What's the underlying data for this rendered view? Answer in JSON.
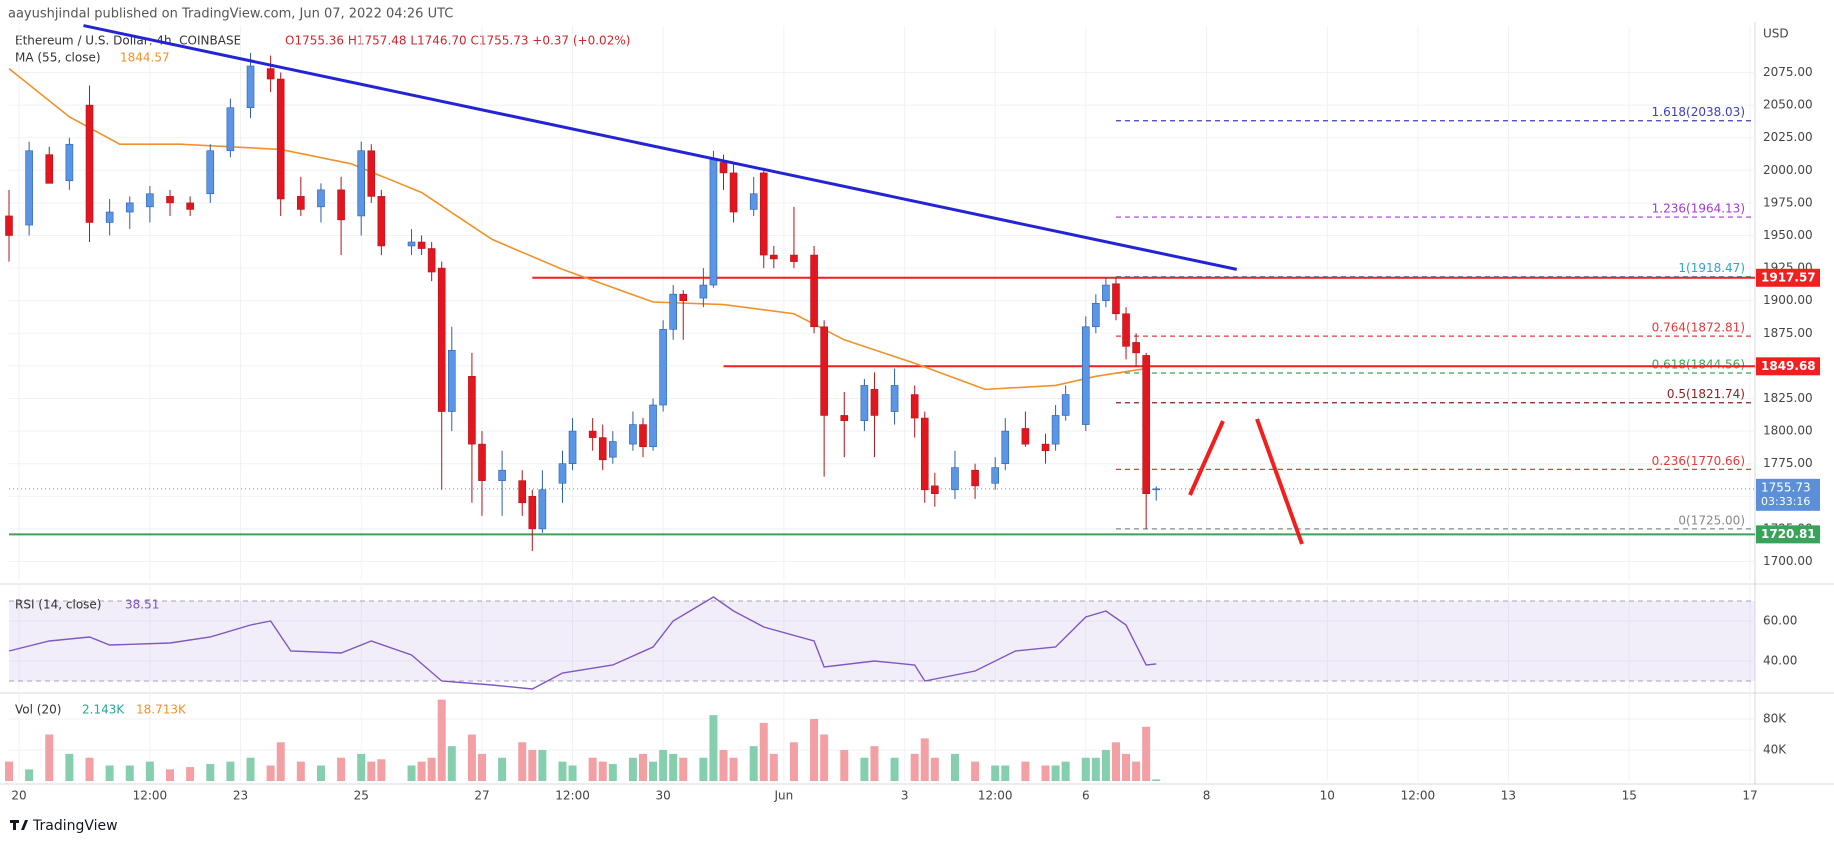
{
  "header": {
    "publisher": "aayushjindal published on TradingView.com, Jun 07, 2022 04:26 UTC",
    "symbol": "Ethereum / U.S. Dollar, 4h, COINBASE",
    "ohlc": "O1755.36  H1757.48  L1746.70  C1755.73  +0.37 (+0.02%)",
    "ma_label": "MA (55, close)",
    "ma_value": 1844.57
  },
  "footer": "TradingView",
  "chart_data": [
    {
      "type": "candlestick",
      "axis_title": "USD",
      "up_color": "#5b95e6",
      "down_color": "#e3161f",
      "grid": true,
      "xlim": [
        0,
        173.5
      ],
      "ylim": [
        1685.8,
        2107.6
      ],
      "xticks": [
        {
          "value": 1,
          "label": "20"
        },
        {
          "value": 14,
          "label": "12:00"
        },
        {
          "value": 23,
          "label": "23"
        },
        {
          "value": 35,
          "label": "25"
        },
        {
          "value": 47,
          "label": "27"
        },
        {
          "value": 56,
          "label": "12:00"
        },
        {
          "value": 65,
          "label": "30"
        },
        {
          "value": 77,
          "label": "Jun"
        },
        {
          "value": 89,
          "label": "3"
        },
        {
          "value": 98,
          "label": "12:00"
        },
        {
          "value": 107,
          "label": "6"
        },
        {
          "value": 119,
          "label": "8"
        },
        {
          "value": 131,
          "label": "10"
        },
        {
          "value": 140,
          "label": "12:00"
        },
        {
          "value": 149,
          "label": "13"
        },
        {
          "value": 161,
          "label": "15"
        },
        {
          "value": 173,
          "label": "17"
        }
      ],
      "yticks": [
        {
          "value": 1700,
          "label": "1700.00"
        },
        {
          "value": 1725,
          "label": "1725.00"
        },
        {
          "value": 1750,
          "label": "1750.00"
        },
        {
          "value": 1775,
          "label": "1775.00"
        },
        {
          "value": 1800,
          "label": "1800.00"
        },
        {
          "value": 1825,
          "label": "1825.00"
        },
        {
          "value": 1850,
          "label": "1850.00"
        },
        {
          "value": 1875,
          "label": "1875.00"
        },
        {
          "value": 1900,
          "label": "1900.00"
        },
        {
          "value": 1925,
          "label": "1925.00"
        },
        {
          "value": 1950,
          "label": "1950.00"
        },
        {
          "value": 1975,
          "label": "1975.00"
        },
        {
          "value": 2000,
          "label": "2000.00"
        },
        {
          "value": 2025,
          "label": "2025.00"
        },
        {
          "value": 2050,
          "label": "2050.00"
        },
        {
          "value": 2075,
          "label": "2075.00"
        }
      ],
      "x": [
        0,
        2,
        4,
        6,
        8,
        10,
        12,
        14,
        16,
        18,
        20,
        22,
        24,
        26,
        27,
        29,
        31,
        33,
        35,
        36,
        37,
        40,
        41,
        42,
        43,
        44,
        46,
        47,
        49,
        51,
        52,
        53,
        55,
        56,
        58,
        59,
        60,
        62,
        63,
        64,
        65,
        66,
        67,
        69,
        70,
        71,
        72,
        74,
        75,
        76,
        78,
        80,
        81,
        83,
        85,
        86,
        88,
        90,
        91,
        92,
        94,
        96,
        98,
        99,
        101,
        103,
        104,
        105,
        107,
        108,
        109,
        110,
        111,
        112,
        113,
        114
      ],
      "open": [
        1965,
        1958,
        2012,
        1992,
        2050,
        1960,
        1968,
        1972,
        1980,
        1975,
        1982,
        2015,
        2048,
        2078,
        2070,
        1980,
        1972,
        1985,
        1965,
        2015,
        1980,
        1942,
        1945,
        1940,
        1925,
        1815,
        1842,
        1790,
        1762,
        1762,
        1750,
        1725,
        1760,
        1775,
        1800,
        1795,
        1780,
        1790,
        1805,
        1788,
        1820,
        1878,
        1905,
        1902,
        1912,
        2006,
        1998,
        1970,
        1998,
        1935,
        1935,
        1935,
        1880,
        1812,
        1808,
        1832,
        1815,
        1828,
        1810,
        1758,
        1755,
        1770,
        1760,
        1775,
        1802,
        1790,
        1790,
        1812,
        1805,
        1880,
        1900,
        1913,
        1890,
        1868,
        1858,
        1755.36
      ],
      "high": [
        1985,
        2022,
        2018,
        2025,
        2065,
        1978,
        1980,
        1988,
        1985,
        1980,
        2020,
        2055,
        2090,
        2088,
        2075,
        1995,
        1990,
        1995,
        2022,
        2020,
        1985,
        1955,
        1950,
        1945,
        1930,
        1880,
        1860,
        1800,
        1785,
        1770,
        1755,
        1770,
        1785,
        1810,
        1810,
        1805,
        1800,
        1815,
        1810,
        1825,
        1885,
        1912,
        1908,
        1925,
        2015,
        2012,
        2005,
        1995,
        2002,
        1942,
        1972,
        1942,
        1885,
        1830,
        1840,
        1845,
        1848,
        1835,
        1815,
        1768,
        1785,
        1775,
        1780,
        1810,
        1815,
        1798,
        1820,
        1835,
        1888,
        1905,
        1918,
        1918,
        1895,
        1875,
        1860,
        1757.48
      ],
      "low": [
        1930,
        1950,
        1990,
        1985,
        1945,
        1950,
        1955,
        1960,
        1965,
        1965,
        1975,
        2010,
        2040,
        2060,
        1965,
        1965,
        1960,
        1935,
        1950,
        1975,
        1935,
        1935,
        1935,
        1915,
        1755,
        1800,
        1745,
        1735,
        1735,
        1735,
        1708,
        1722,
        1745,
        1770,
        1785,
        1770,
        1775,
        1785,
        1780,
        1785,
        1815,
        1870,
        1870,
        1895,
        1910,
        1985,
        1960,
        1965,
        1925,
        1925,
        1925,
        1875,
        1765,
        1780,
        1800,
        1780,
        1805,
        1795,
        1745,
        1742,
        1748,
        1748,
        1755,
        1770,
        1788,
        1775,
        1785,
        1808,
        1800,
        1875,
        1895,
        1885,
        1855,
        1850,
        1725,
        1746.7
      ],
      "close": [
        1950,
        2015,
        1990,
        2020,
        1960,
        1968,
        1975,
        1982,
        1975,
        1970,
        2015,
        2048,
        2080,
        2070,
        1978,
        1970,
        1985,
        1962,
        2015,
        1980,
        1942,
        1945,
        1940,
        1922,
        1815,
        1862,
        1790,
        1762,
        1770,
        1745,
        1725,
        1755,
        1775,
        1800,
        1795,
        1778,
        1792,
        1805,
        1788,
        1820,
        1878,
        1905,
        1900,
        1912,
        2008,
        1998,
        1968,
        1982,
        1935,
        1932,
        1930,
        1880,
        1812,
        1808,
        1835,
        1812,
        1835,
        1810,
        1755,
        1752,
        1772,
        1758,
        1772,
        1800,
        1790,
        1785,
        1812,
        1828,
        1880,
        1898,
        1912,
        1890,
        1865,
        1860,
        1752,
        1755.73
      ],
      "ma": {
        "color": "#f0922b",
        "x": [
          0,
          6,
          11,
          17,
          27,
          34,
          41,
          48,
          55,
          64,
          71,
          78,
          83,
          90,
          97,
          104,
          108,
          113
        ],
        "values": [
          2078,
          2041,
          2020,
          2020,
          2016,
          2005,
          1983,
          1947,
          1924,
          1899,
          1897,
          1890,
          1870,
          1852,
          1832,
          1835,
          1842,
          1848
        ]
      },
      "trendline": {
        "color": "#2424d4",
        "x": [
          7.4,
          122
        ],
        "values": [
          2111,
          1924
        ]
      },
      "levels": [
        {
          "value": 1917.57,
          "x_start": 52,
          "color": "#f21f1f"
        },
        {
          "value": 1849.68,
          "x_start": 71,
          "color": "#f21f1f"
        },
        {
          "value": 1720.81,
          "x_start": 0,
          "color": "#3aa35a"
        }
      ],
      "last_price": {
        "value": 1755.73,
        "countdown": "03:33:16",
        "color": "#5b8fd8"
      },
      "fib": {
        "x_start": 110,
        "levels": [
          {
            "label": "1.618(2038.03)",
            "value": 2038.03,
            "color": "#3d3dc4"
          },
          {
            "label": "1.236(1964.13)",
            "value": 1964.13,
            "color": "#a23cd0"
          },
          {
            "label": "1(1918.47)",
            "value": 1918.47,
            "color": "#2fa6c4"
          },
          {
            "label": "0.764(1872.81)",
            "value": 1872.81,
            "color": "#e23b3b"
          },
          {
            "label": "0.618(1844.56)",
            "value": 1844.56,
            "color": "#3aa35a"
          },
          {
            "label": "0.5(1821.74)",
            "value": 1821.74,
            "color": "#8a1f1f"
          },
          {
            "label": "0.236(1770.66)",
            "value": 1770.66,
            "color": "#e23b3b"
          },
          {
            "label": "0(1725.00)",
            "value": 1725.0,
            "color": "#888888"
          }
        ]
      }
    },
    {
      "type": "line",
      "title": "RSI (14, close)",
      "last_value": 38.51,
      "color": "#7e57c2",
      "band": [
        30,
        70
      ],
      "xlim": [
        0,
        173.5
      ],
      "ylim": [
        24.5,
        76.5
      ],
      "yticks": [
        {
          "value": 40,
          "label": "40.00"
        },
        {
          "value": 60,
          "label": "60.00"
        }
      ],
      "x": [
        0,
        4,
        8,
        10,
        16,
        20,
        24,
        26,
        28,
        33,
        36,
        40,
        43,
        48,
        52,
        55,
        60,
        64,
        66,
        70,
        72,
        75,
        80,
        81,
        86,
        90,
        91,
        96,
        100,
        104,
        107,
        109,
        111,
        113,
        114
      ],
      "values": [
        45,
        50,
        52,
        48,
        49,
        52,
        58,
        60,
        45,
        44,
        50,
        43,
        30,
        28,
        26,
        34,
        38,
        47,
        60,
        72,
        65,
        57,
        50,
        37,
        40,
        38,
        30,
        35,
        45,
        47,
        62,
        65,
        58,
        38,
        38.51
      ]
    },
    {
      "type": "bar",
      "title": "Vol (20)",
      "last_value": "2.143K",
      "ma_value": "18.713K",
      "up_color": "#86cfae",
      "down_color": "#f2a0a4",
      "xlim": [
        0,
        173.5
      ],
      "ylim": [
        0,
        111000
      ],
      "yticks": [
        {
          "value": 40000,
          "label": "40K"
        },
        {
          "value": 80000,
          "label": "80K"
        }
      ],
      "values": [
        25000,
        15000,
        60000,
        35000,
        30000,
        20000,
        20000,
        25000,
        15000,
        18000,
        22000,
        25000,
        30000,
        20000,
        50000,
        25000,
        20000,
        30000,
        35000,
        25000,
        28000,
        20000,
        25000,
        30000,
        105000,
        45000,
        60000,
        35000,
        30000,
        50000,
        40000,
        40000,
        25000,
        20000,
        30000,
        25000,
        22000,
        30000,
        35000,
        25000,
        40000,
        35000,
        30000,
        30000,
        85000,
        40000,
        30000,
        45000,
        75000,
        35000,
        50000,
        80000,
        60000,
        40000,
        30000,
        45000,
        30000,
        35000,
        55000,
        30000,
        35000,
        25000,
        20000,
        20000,
        25000,
        20000,
        20000,
        25000,
        30000,
        30000,
        40000,
        50000,
        35000,
        25000,
        70000,
        2143
      ]
    }
  ]
}
